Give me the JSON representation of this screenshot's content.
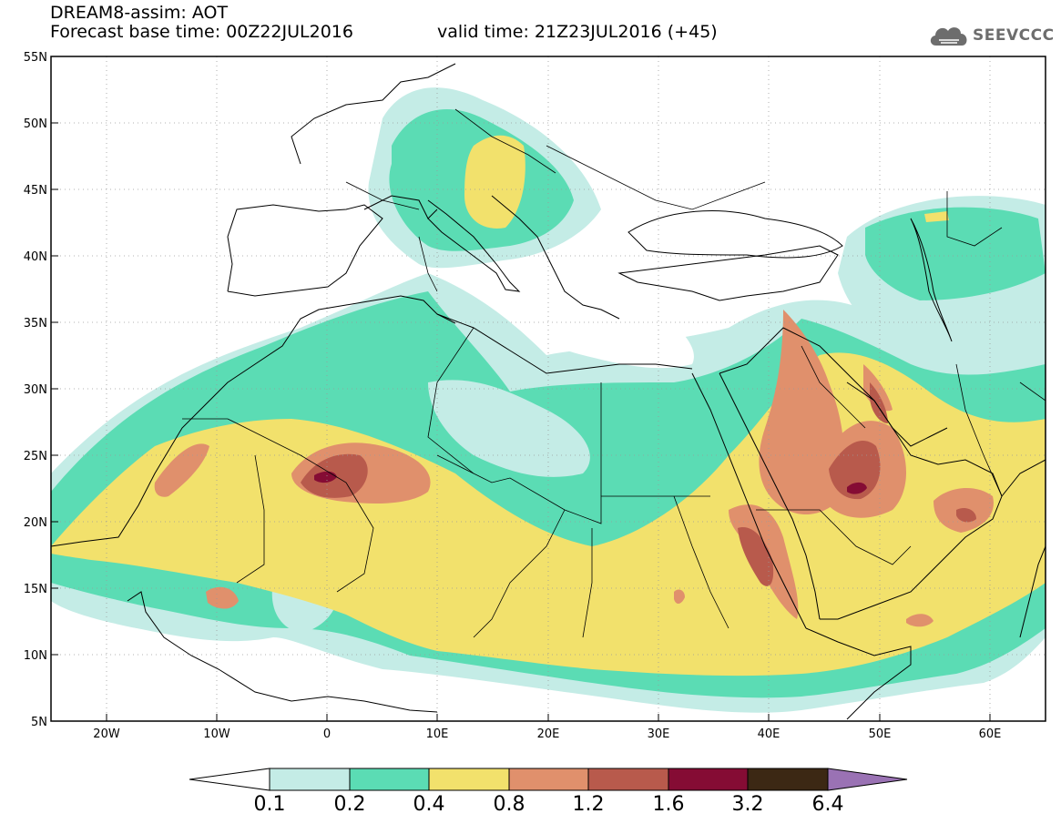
{
  "title": {
    "line1": "DREAM8-assim: AOT",
    "line2": "Forecast base time: 00Z22JUL2016",
    "valid": "valid time: 21Z23JUL2016 (+45)"
  },
  "logo": {
    "text": "SEEVCCC",
    "icon": "cloud-icon"
  },
  "axes": {
    "lat_ticks": [
      "55N",
      "50N",
      "45N",
      "40N",
      "35N",
      "30N",
      "25N",
      "20N",
      "15N",
      "10N",
      "5N"
    ],
    "lon_ticks": [
      "20W",
      "10W",
      "0",
      "10E",
      "20E",
      "30E",
      "40E",
      "50E",
      "60E"
    ],
    "lat_range": [
      5,
      55
    ],
    "lon_range": [
      -25,
      65
    ]
  },
  "colorbar": {
    "labels": [
      "0.1",
      "0.2",
      "0.4",
      "0.8",
      "1.2",
      "1.6",
      "3.2",
      "6.4"
    ],
    "colors": {
      "under": "#ffffff",
      "c1": "#c4ece6",
      "c2": "#5bdcb4",
      "c3": "#f2e16c",
      "c4": "#e0906c",
      "c5": "#b85a4c",
      "c6": "#850c34",
      "c7": "#3c2814",
      "over": "#9a72b4"
    }
  }
}
